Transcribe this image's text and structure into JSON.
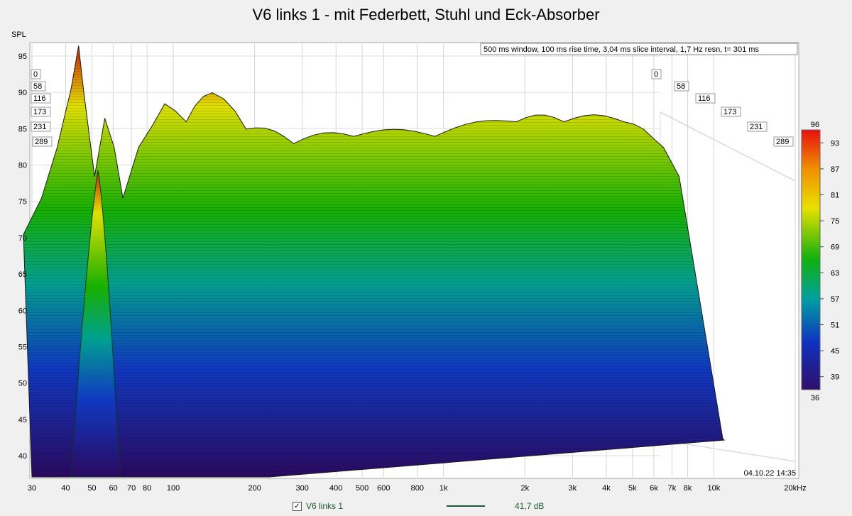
{
  "title": "V6 links 1 - mit Federbett, Stuhl und Eck-Absorber",
  "info": "500 ms window, 100 ms rise time, 3,04 ms slice interval, 1,7 Hz resn, t= 301 ms",
  "date": "04.10.22 14:35",
  "legend": {
    "label": "V6 links 1",
    "value": "41,7 dB",
    "checked": true
  },
  "colors": {
    "background": "#f0f0f0",
    "plot_bg": "#ffffff",
    "trace": "#1a5a3a"
  },
  "chart_data": {
    "type": "waterfall",
    "title": "V6 links 1 - mit Federbett, Stuhl und Eck-Absorber",
    "ylabel": "SPL",
    "xlabel": "",
    "x_scale": "log",
    "xlim": [
      30,
      20000
    ],
    "ylim": [
      37,
      97
    ],
    "x_ticks": [
      "30",
      "40",
      "50",
      "60",
      "70",
      "80",
      "100",
      "200",
      "300",
      "400",
      "500",
      "600",
      "800",
      "1k",
      "2k",
      "3k",
      "4k",
      "5k",
      "6k",
      "7k",
      "8k",
      "10k",
      "20kHz"
    ],
    "y_ticks": [
      "40",
      "45",
      "50",
      "55",
      "60",
      "65",
      "70",
      "75",
      "80",
      "85",
      "90",
      "95"
    ],
    "time_ticks_ms": [
      "0",
      "58",
      "116",
      "173",
      "231",
      "289"
    ],
    "colorbar": {
      "min": 36,
      "max": 96,
      "ticks": [
        "93",
        "87",
        "81",
        "75",
        "69",
        "63",
        "57",
        "51",
        "45",
        "39"
      ],
      "min_label": "36",
      "max_label": "96"
    },
    "grid": true,
    "legend_position": "bottom",
    "series": [
      {
        "name": "V6 links 1",
        "x": [
          30,
          35,
          40,
          45,
          48,
          50,
          55,
          60,
          65,
          70,
          80,
          90,
          100,
          120,
          150,
          200,
          300,
          500,
          1000,
          2000,
          3000,
          5000,
          7000,
          8000
        ],
        "y": [
          70,
          75,
          82,
          90,
          96,
          90,
          78,
          86,
          82,
          75,
          82,
          85,
          88,
          86,
          90,
          85,
          83,
          84,
          84,
          86,
          86,
          86,
          82,
          78
        ]
      }
    ]
  }
}
